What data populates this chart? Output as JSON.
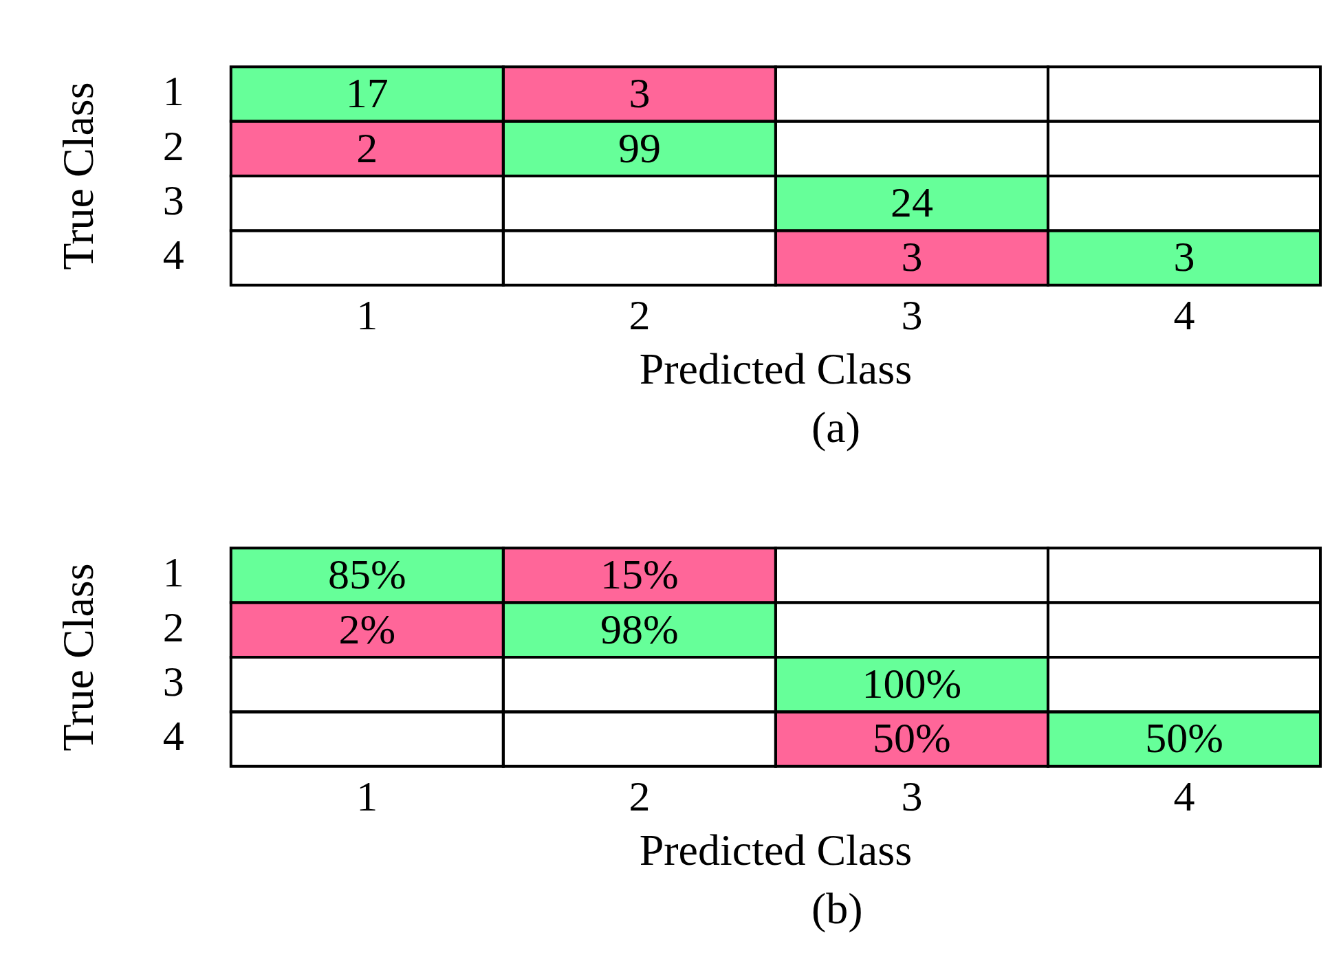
{
  "chart_data": [
    {
      "type": "heatmap",
      "data_labels": true,
      "xlabel": "Predicted Class",
      "ylabel": "True Class",
      "annotations": [
        "(a)"
      ],
      "categories": [
        "1",
        "2",
        "3",
        "4"
      ],
      "y_categories": [
        "1",
        "2",
        "3",
        "4"
      ],
      "cells": [
        [
          17,
          3,
          null,
          null
        ],
        [
          2,
          99,
          null,
          null
        ],
        [
          null,
          null,
          24,
          null
        ],
        [
          null,
          null,
          3,
          3
        ]
      ],
      "colors": [
        [
          "#66ff99",
          "#ff6699",
          null,
          null
        ],
        [
          "#ff6699",
          "#66ff99",
          null,
          null
        ],
        [
          null,
          null,
          "#66ff99",
          null
        ],
        [
          null,
          null,
          "#ff6699",
          "#66ff99"
        ]
      ]
    },
    {
      "type": "heatmap",
      "xlabel": "Predicted Class",
      "ylabel": "True Class",
      "annotations": [
        "(b)"
      ],
      "categories": [
        "1",
        "2",
        "3",
        "4"
      ],
      "y_categories": [
        "1",
        "2",
        "3",
        "4"
      ],
      "cells": [
        [
          85,
          15,
          null,
          null
        ],
        [
          2,
          98,
          null,
          null
        ],
        [
          null,
          null,
          100,
          null
        ],
        [
          null,
          null,
          50,
          50
        ]
      ],
      "cell_labels": [
        [
          "85%",
          "15%",
          null,
          null
        ],
        [
          "2%",
          "98%",
          null,
          null
        ],
        [
          null,
          null,
          "100%",
          null
        ],
        [
          null,
          null,
          "50%",
          "50%"
        ]
      ],
      "colors": [
        [
          "#66ff99",
          "#ff6699",
          null,
          null
        ],
        [
          "#ff6699",
          "#66ff99",
          null,
          null
        ],
        [
          null,
          null,
          "#66ff99",
          null
        ],
        [
          null,
          null,
          "#ff6699",
          "#66ff99"
        ]
      ]
    }
  ]
}
